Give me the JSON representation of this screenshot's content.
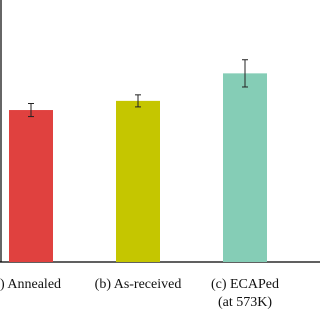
{
  "chart_data": {
    "type": "bar",
    "categories": [
      [
        ") Annealed"
      ],
      [
        "(b) As-received"
      ],
      [
        "(c) ECAPed",
        "(at 573K)"
      ]
    ],
    "values": [
      58,
      61.5,
      72
    ],
    "errors": [
      2.5,
      2.3,
      5.2
    ],
    "colors": [
      "#e0413f",
      "#c5c600",
      "#85cdb6"
    ],
    "ylim": [
      0,
      100
    ]
  }
}
